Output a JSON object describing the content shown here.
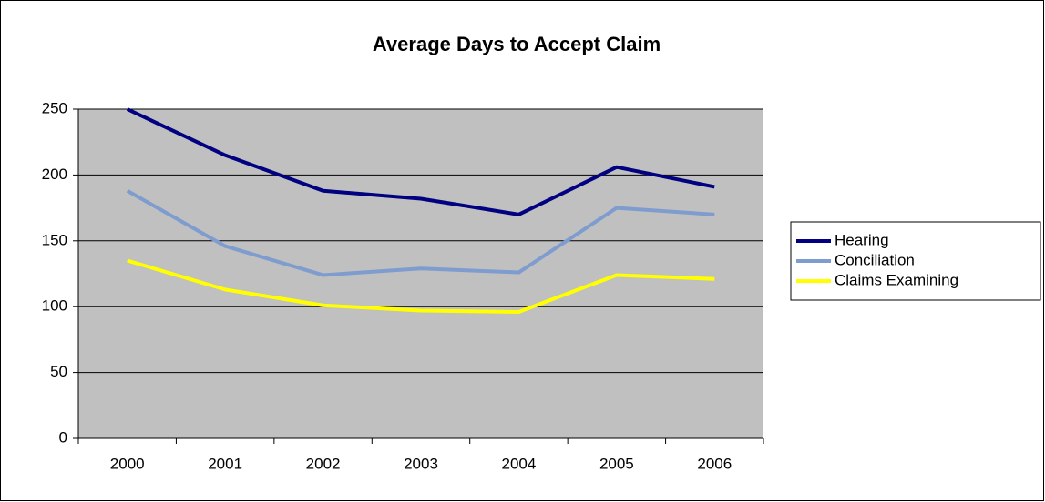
{
  "chart_data": {
    "type": "line",
    "title": "Average Days to Accept Claim",
    "categories": [
      "2000",
      "2001",
      "2002",
      "2003",
      "2004",
      "2005",
      "2006"
    ],
    "series": [
      {
        "name": "Hearing",
        "color": "#000080",
        "values": [
          250,
          215,
          188,
          182,
          170,
          206,
          191
        ]
      },
      {
        "name": "Conciliation",
        "color": "#7f9ccf",
        "values": [
          188,
          146,
          124,
          129,
          126,
          175,
          170
        ]
      },
      {
        "name": "Claims Examining",
        "color": "#ffff00",
        "values": [
          135,
          113,
          101,
          97,
          96,
          124,
          121
        ]
      }
    ],
    "ylim": [
      0,
      250
    ],
    "yticks": [
      0,
      50,
      100,
      150,
      200,
      250
    ],
    "grid": true,
    "legend": "right"
  }
}
